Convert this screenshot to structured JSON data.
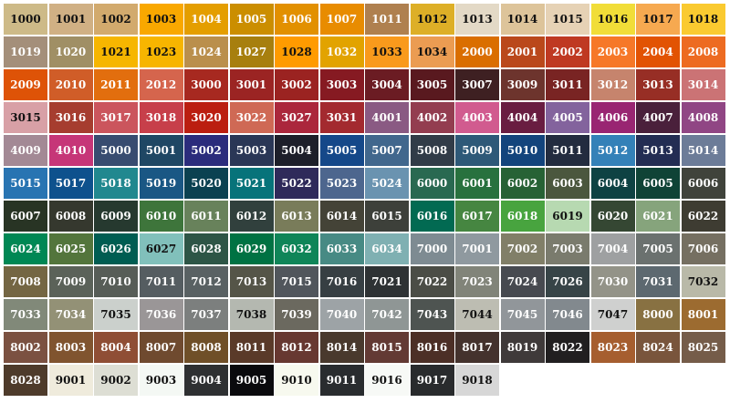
{
  "swatches": [
    {
      "label": "1000",
      "color": "#CDBA88"
    },
    {
      "label": "1001",
      "color": "#D0B084"
    },
    {
      "label": "1002",
      "color": "#D2AA6D"
    },
    {
      "label": "1003",
      "color": "#F9A800"
    },
    {
      "label": "1004",
      "color": "#E49E00"
    },
    {
      "label": "1005",
      "color": "#CB8E00"
    },
    {
      "label": "1006",
      "color": "#E29000"
    },
    {
      "label": "1007",
      "color": "#E88C00"
    },
    {
      "label": "1011",
      "color": "#AF804F"
    },
    {
      "label": "1012",
      "color": "#DDAF27"
    },
    {
      "label": "1013",
      "color": "#E3D9C6"
    },
    {
      "label": "1014",
      "color": "#DDC49A"
    },
    {
      "label": "1015",
      "color": "#E6D2B5"
    },
    {
      "label": "1016",
      "color": "#F1DD38"
    },
    {
      "label": "1017",
      "color": "#F6A950"
    },
    {
      "label": "1018",
      "color": "#FACA30"
    },
    {
      "label": "1019",
      "color": "#A48F7A"
    },
    {
      "label": "1020",
      "color": "#A08F65"
    },
    {
      "label": "1021",
      "color": "#F6B600"
    },
    {
      "label": "1023",
      "color": "#F7B500"
    },
    {
      "label": "1024",
      "color": "#BA8F4C"
    },
    {
      "label": "1027",
      "color": "#A77F0E"
    },
    {
      "label": "1028",
      "color": "#FF9B00"
    },
    {
      "label": "1032",
      "color": "#E2A300"
    },
    {
      "label": "1033",
      "color": "#F99A1C"
    },
    {
      "label": "1034",
      "color": "#EB9C52"
    },
    {
      "label": "2000",
      "color": "#DA6E00"
    },
    {
      "label": "2001",
      "color": "#BA481B"
    },
    {
      "label": "2002",
      "color": "#BF3922"
    },
    {
      "label": "2003",
      "color": "#F67828"
    },
    {
      "label": "2004",
      "color": "#E25303"
    },
    {
      "label": "2008",
      "color": "#ED6B21"
    },
    {
      "label": "2009",
      "color": "#DE5307"
    },
    {
      "label": "2010",
      "color": "#D05D28"
    },
    {
      "label": "2011",
      "color": "#E26E0E"
    },
    {
      "label": "2012",
      "color": "#D5654D"
    },
    {
      "label": "3000",
      "color": "#A72920"
    },
    {
      "label": "3001",
      "color": "#9B2423"
    },
    {
      "label": "3002",
      "color": "#9B2321"
    },
    {
      "label": "3003",
      "color": "#861A22"
    },
    {
      "label": "3004",
      "color": "#6B1C23"
    },
    {
      "label": "3005",
      "color": "#59191F"
    },
    {
      "label": "3007",
      "color": "#3E2022"
    },
    {
      "label": "3009",
      "color": "#6D342D"
    },
    {
      "label": "3011",
      "color": "#792423"
    },
    {
      "label": "3012",
      "color": "#C6846D"
    },
    {
      "label": "3013",
      "color": "#972E25"
    },
    {
      "label": "3014",
      "color": "#CB7375"
    },
    {
      "label": "3015",
      "color": "#D8A0A6"
    },
    {
      "label": "3016",
      "color": "#A63D2F"
    },
    {
      "label": "3017",
      "color": "#CB555D"
    },
    {
      "label": "3018",
      "color": "#C73F4A"
    },
    {
      "label": "3020",
      "color": "#BB1E10"
    },
    {
      "label": "3022",
      "color": "#CF6955"
    },
    {
      "label": "3027",
      "color": "#AB273C"
    },
    {
      "label": "3031",
      "color": "#A32A2F"
    },
    {
      "label": "4001",
      "color": "#8A5A83"
    },
    {
      "label": "4002",
      "color": "#933D50"
    },
    {
      "label": "4003",
      "color": "#D15B8F"
    },
    {
      "label": "4004",
      "color": "#691D41"
    },
    {
      "label": "4005",
      "color": "#83639D"
    },
    {
      "label": "4006",
      "color": "#992572"
    },
    {
      "label": "4007",
      "color": "#4A203B"
    },
    {
      "label": "4008",
      "color": "#904684"
    },
    {
      "label": "4009",
      "color": "#A38995"
    },
    {
      "label": "4010",
      "color": "#C63678"
    },
    {
      "label": "5000",
      "color": "#384C70"
    },
    {
      "label": "5001",
      "color": "#1F4764"
    },
    {
      "label": "5002",
      "color": "#2B2C7C"
    },
    {
      "label": "5003",
      "color": "#2A3756"
    },
    {
      "label": "5004",
      "color": "#1D1F2A"
    },
    {
      "label": "5005",
      "color": "#154889"
    },
    {
      "label": "5007",
      "color": "#41678D"
    },
    {
      "label": "5008",
      "color": "#313C48"
    },
    {
      "label": "5009",
      "color": "#2E5978"
    },
    {
      "label": "5010",
      "color": "#13447C"
    },
    {
      "label": "5011",
      "color": "#232C3F"
    },
    {
      "label": "5012",
      "color": "#3481B8"
    },
    {
      "label": "5013",
      "color": "#232D53"
    },
    {
      "label": "5014",
      "color": "#6C7C98"
    },
    {
      "label": "5015",
      "color": "#2874B2"
    },
    {
      "label": "5017",
      "color": "#0E518D"
    },
    {
      "label": "5018",
      "color": "#21888F"
    },
    {
      "label": "5019",
      "color": "#1A5784"
    },
    {
      "label": "5020",
      "color": "#0B4151"
    },
    {
      "label": "5021",
      "color": "#07737A"
    },
    {
      "label": "5022",
      "color": "#2F2A5A"
    },
    {
      "label": "5023",
      "color": "#4D668E"
    },
    {
      "label": "5024",
      "color": "#6A93B0"
    },
    {
      "label": "6000",
      "color": "#296951"
    },
    {
      "label": "6001",
      "color": "#28713E"
    },
    {
      "label": "6002",
      "color": "#276235"
    },
    {
      "label": "6003",
      "color": "#4B573E"
    },
    {
      "label": "6004",
      "color": "#0E4243"
    },
    {
      "label": "6005",
      "color": "#0F4336"
    },
    {
      "label": "6006",
      "color": "#40433B"
    },
    {
      "label": "6007",
      "color": "#283424"
    },
    {
      "label": "6008",
      "color": "#35382E"
    },
    {
      "label": "6009",
      "color": "#26392F"
    },
    {
      "label": "6010",
      "color": "#3E753B"
    },
    {
      "label": "6011",
      "color": "#68825B"
    },
    {
      "label": "6012",
      "color": "#31403D"
    },
    {
      "label": "6013",
      "color": "#797C5A"
    },
    {
      "label": "6014",
      "color": "#444337"
    },
    {
      "label": "6015",
      "color": "#3D403A"
    },
    {
      "label": "6016",
      "color": "#026A52"
    },
    {
      "label": "6017",
      "color": "#468641"
    },
    {
      "label": "6018",
      "color": "#48A43F"
    },
    {
      "label": "6019",
      "color": "#B7D9B1"
    },
    {
      "label": "6020",
      "color": "#354733"
    },
    {
      "label": "6021",
      "color": "#86A47C"
    },
    {
      "label": "6022",
      "color": "#3E3C32"
    },
    {
      "label": "6024",
      "color": "#008754"
    },
    {
      "label": "6025",
      "color": "#53753C"
    },
    {
      "label": "6026",
      "color": "#005D52"
    },
    {
      "label": "6027",
      "color": "#81C0BB"
    },
    {
      "label": "6028",
      "color": "#2D5546"
    },
    {
      "label": "6029",
      "color": "#007243"
    },
    {
      "label": "6032",
      "color": "#0F8558"
    },
    {
      "label": "6033",
      "color": "#478A84"
    },
    {
      "label": "6034",
      "color": "#7FB0B2"
    },
    {
      "label": "7000",
      "color": "#7E8B92"
    },
    {
      "label": "7001",
      "color": "#8F999F"
    },
    {
      "label": "7002",
      "color": "#817F68"
    },
    {
      "label": "7003",
      "color": "#7A7B6D"
    },
    {
      "label": "7004",
      "color": "#9EA0A1"
    },
    {
      "label": "7005",
      "color": "#6B716F"
    },
    {
      "label": "7006",
      "color": "#756F61"
    },
    {
      "label": "7008",
      "color": "#746643"
    },
    {
      "label": "7009",
      "color": "#5B6259"
    },
    {
      "label": "7010",
      "color": "#575D57"
    },
    {
      "label": "7011",
      "color": "#555D61"
    },
    {
      "label": "7012",
      "color": "#596163"
    },
    {
      "label": "7013",
      "color": "#555548"
    },
    {
      "label": "7015",
      "color": "#51565C"
    },
    {
      "label": "7016",
      "color": "#373F43"
    },
    {
      "label": "7021",
      "color": "#2E3234"
    },
    {
      "label": "7022",
      "color": "#4B4D46"
    },
    {
      "label": "7023",
      "color": "#818479"
    },
    {
      "label": "7024",
      "color": "#474A50"
    },
    {
      "label": "7026",
      "color": "#374447"
    },
    {
      "label": "7030",
      "color": "#939388"
    },
    {
      "label": "7031",
      "color": "#5D6970"
    },
    {
      "label": "7032",
      "color": "#B9B9A8"
    },
    {
      "label": "7033",
      "color": "#818979"
    },
    {
      "label": "7034",
      "color": "#939176"
    },
    {
      "label": "7035",
      "color": "#CBD0CC"
    },
    {
      "label": "7036",
      "color": "#9A9697"
    },
    {
      "label": "7037",
      "color": "#7C7F7E"
    },
    {
      "label": "7038",
      "color": "#B4B8B0"
    },
    {
      "label": "7039",
      "color": "#6B695F"
    },
    {
      "label": "7040",
      "color": "#9DA3A6"
    },
    {
      "label": "7042",
      "color": "#8F9695"
    },
    {
      "label": "7043",
      "color": "#4E5451"
    },
    {
      "label": "7044",
      "color": "#BDBDB2"
    },
    {
      "label": "7045",
      "color": "#91969A"
    },
    {
      "label": "7046",
      "color": "#82898E"
    },
    {
      "label": "7047",
      "color": "#CFD0CF"
    },
    {
      "label": "8000",
      "color": "#887142"
    },
    {
      "label": "8001",
      "color": "#9C6B30"
    },
    {
      "label": "8002",
      "color": "#7B5141"
    },
    {
      "label": "8003",
      "color": "#80542F"
    },
    {
      "label": "8004",
      "color": "#8F4E35"
    },
    {
      "label": "8007",
      "color": "#6F4A2F"
    },
    {
      "label": "8008",
      "color": "#6F4F28"
    },
    {
      "label": "8011",
      "color": "#5A3A29"
    },
    {
      "label": "8012",
      "color": "#673831"
    },
    {
      "label": "8014",
      "color": "#49392D"
    },
    {
      "label": "8015",
      "color": "#633A34"
    },
    {
      "label": "8016",
      "color": "#4C2F26"
    },
    {
      "label": "8017",
      "color": "#44322D"
    },
    {
      "label": "8019",
      "color": "#3F3A3A"
    },
    {
      "label": "8022",
      "color": "#211F20"
    },
    {
      "label": "8023",
      "color": "#A65E2F"
    },
    {
      "label": "8024",
      "color": "#79553C"
    },
    {
      "label": "8025",
      "color": "#755C49"
    },
    {
      "label": "8028",
      "color": "#4E3B2B"
    },
    {
      "label": "9001",
      "color": "#EFEBDC"
    },
    {
      "label": "9002",
      "color": "#DDDED4"
    },
    {
      "label": "9003",
      "color": "#F4F8F4"
    },
    {
      "label": "9004",
      "color": "#2E3032"
    },
    {
      "label": "9005",
      "color": "#0A0A0D"
    },
    {
      "label": "9010",
      "color": "#F7F9EF"
    },
    {
      "label": "9011",
      "color": "#292C2F"
    },
    {
      "label": "9016",
      "color": "#F7F9F6"
    },
    {
      "label": "9017",
      "color": "#292B2D"
    },
    {
      "label": "9018",
      "color": "#D7D7D7"
    }
  ]
}
